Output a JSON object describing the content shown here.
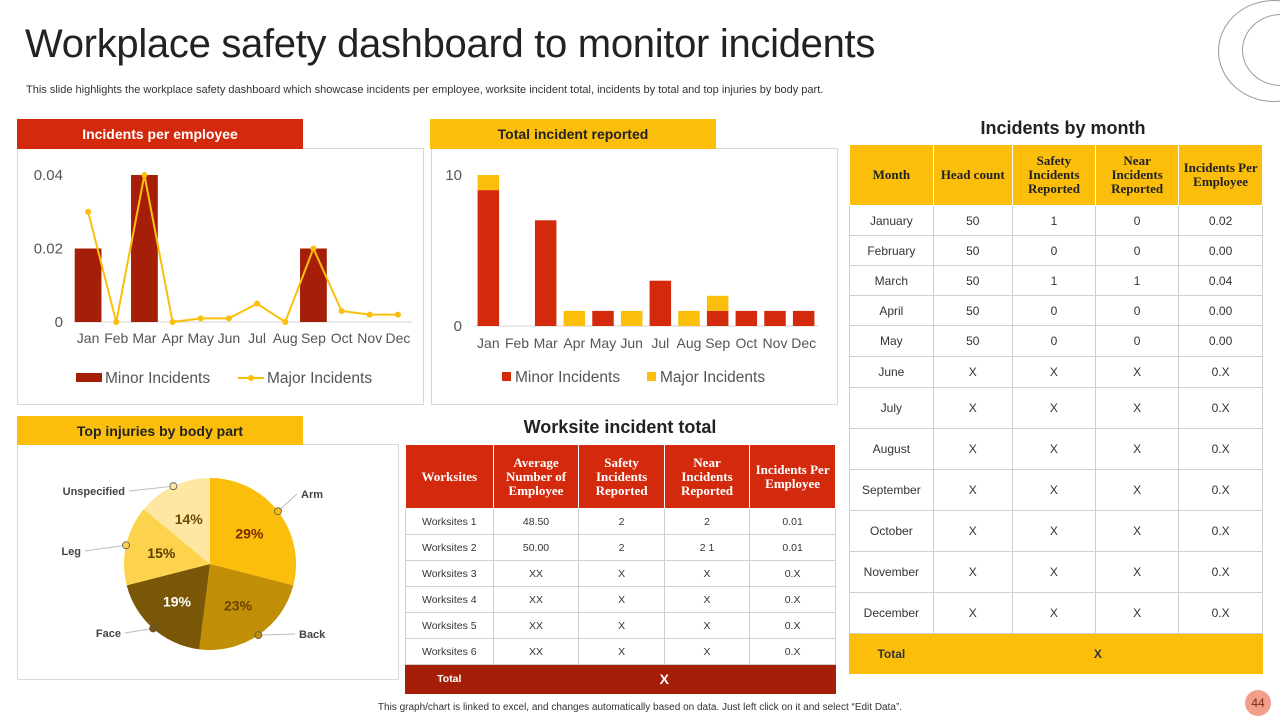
{
  "page": {
    "title": "Workplace safety dashboard to monitor incidents",
    "subtitle": "This slide highlights the workplace safety dashboard which showcase incidents per employee, worksite incident total, incidents by total and top injuries by body part.",
    "footer": "This graph/chart is linked to excel, and changes automatically based on data. Just left click on it and select “Edit Data”.",
    "page_number": "44"
  },
  "colors": {
    "red": "#d32a0e",
    "dark_red": "#a51e08",
    "yellow": "#fbbf0b",
    "maroon": "#a51e08"
  },
  "panels": {
    "incidents_per_employee": "Incidents per employee",
    "total_incident_reported": "Total incident reported",
    "top_injuries": "Top injuries by body part",
    "worksite_total": "Worksite incident total",
    "incidents_by_month": "Incidents by month"
  },
  "chart_data": [
    {
      "type": "bar",
      "title": "Incidents per employee",
      "categories": [
        "Jan",
        "Feb",
        "Mar",
        "Apr",
        "May",
        "Jun",
        "Jul",
        "Aug",
        "Sep",
        "Oct",
        "Nov",
        "Dec"
      ],
      "series": [
        {
          "name": "Minor Incidents",
          "kind": "bar",
          "color": "#a51e08",
          "values": [
            0.02,
            0,
            0.04,
            0,
            0,
            0,
            0,
            0,
            0.02,
            0,
            0,
            0
          ]
        },
        {
          "name": "Major Incidents",
          "kind": "line",
          "color": "#fbbf0b",
          "values": [
            0.03,
            0,
            0.04,
            0,
            0.001,
            0.001,
            0.005,
            0,
            0.02,
            0.003,
            0.002,
            0.002
          ]
        }
      ],
      "yticks": [
        "0",
        "0.02",
        "0.04"
      ],
      "ylim": [
        0,
        0.04
      ]
    },
    {
      "type": "bar",
      "stacked": true,
      "title": "Total incident reported",
      "categories": [
        "Jan",
        "Feb",
        "Mar",
        "Apr",
        "May",
        "Jun",
        "Jul",
        "Aug",
        "Sep",
        "Oct",
        "Nov",
        "Dec"
      ],
      "series": [
        {
          "name": "Minor Incidents",
          "color": "#d32a0e",
          "values": [
            9,
            0,
            7,
            0,
            1,
            0,
            3,
            0,
            1,
            1,
            1,
            1
          ]
        },
        {
          "name": "Major Incidents",
          "color": "#fbbf0b",
          "values": [
            1,
            0,
            0,
            1,
            0,
            1,
            0,
            1,
            1,
            0,
            0,
            0
          ]
        }
      ],
      "yticks": [
        "0",
        "10"
      ],
      "ylim": [
        0,
        10
      ]
    },
    {
      "type": "pie",
      "title": "Top injuries by body part",
      "slices": [
        {
          "label": "Arm",
          "value": 29,
          "pct": "29%",
          "color": "#fbbf0b"
        },
        {
          "label": "Back",
          "value": 23,
          "pct": "23%",
          "color": "#c08f06"
        },
        {
          "label": "Face",
          "value": 19,
          "pct": "19%",
          "color": "#7a5706"
        },
        {
          "label": "Leg",
          "value": 15,
          "pct": "15%",
          "color": "#fdd34d"
        },
        {
          "label": "Unspecified",
          "value": 14,
          "pct": "14%",
          "color": "#fee7a3"
        }
      ]
    }
  ],
  "worksite_table": {
    "headers": [
      "Worksites",
      "Average Number of Employee",
      "Safety Incidents Reported",
      "Near Incidents Reported",
      "Incidents Per Employee"
    ],
    "rows": [
      [
        "Worksites 1",
        "48.50",
        "2",
        "2",
        "0.01"
      ],
      [
        "Worksites 2",
        "50.00",
        "2",
        "2 1",
        "0.01"
      ],
      [
        "Worksites 3",
        "XX",
        "X",
        "X",
        "0.X"
      ],
      [
        "Worksites 4",
        "XX",
        "X",
        "X",
        "0.X"
      ],
      [
        "Worksites 5",
        "XX",
        "X",
        "X",
        "0.X"
      ],
      [
        "Worksites 6",
        "XX",
        "X",
        "X",
        "0.X"
      ]
    ],
    "total_label": "Total",
    "total_value": "X"
  },
  "month_table": {
    "headers": [
      "Month",
      "Head count",
      "Safety Incidents Reported",
      "Near Incidents Reported",
      "Incidents Per Employee"
    ],
    "rows": [
      [
        "January",
        "50",
        "1",
        "0",
        "0.02"
      ],
      [
        "February",
        "50",
        "0",
        "0",
        "0.00"
      ],
      [
        "March",
        "50",
        "1",
        "1",
        "0.04"
      ],
      [
        "April",
        "50",
        "0",
        "0",
        "0.00"
      ],
      [
        "May",
        "50",
        "0",
        "0",
        "0.00"
      ],
      [
        "June",
        "X",
        "X",
        "X",
        "0.X"
      ],
      [
        "July",
        "X",
        "X",
        "X",
        "0.X"
      ],
      [
        "August",
        "X",
        "X",
        "X",
        "0.X"
      ],
      [
        "September",
        "X",
        "X",
        "X",
        "0.X"
      ],
      [
        "October",
        "X",
        "X",
        "X",
        "0.X"
      ],
      [
        "November",
        "X",
        "X",
        "X",
        "0.X"
      ],
      [
        "December",
        "X",
        "X",
        "X",
        "0.X"
      ]
    ],
    "total_label": "Total",
    "total_value": "X"
  }
}
